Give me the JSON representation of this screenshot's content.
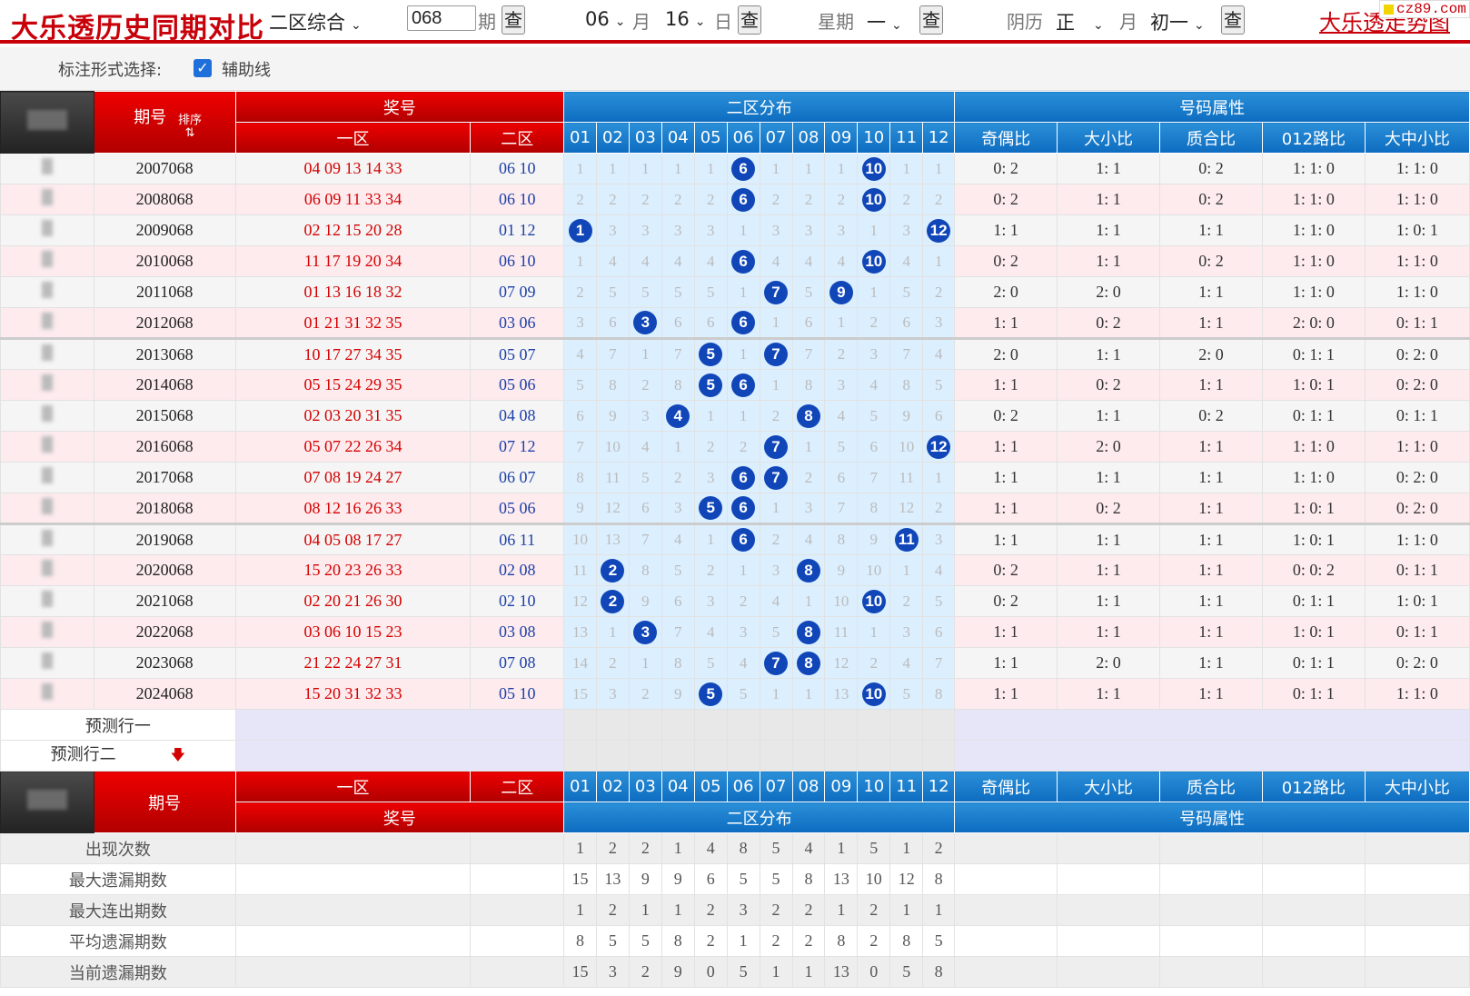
{
  "topbar": {
    "title": "大乐透历史同期对比",
    "zone_select": "二区综合",
    "issue_input": "068",
    "issue_label": "期",
    "btn_query": "查",
    "month_value": "06",
    "month_label": "月",
    "day_value": "16",
    "day_label": "日",
    "weekday_label": "星期",
    "weekday_value": "一",
    "lunar_label": "阴历",
    "lunar_month": "正",
    "lunar_month_label": "月",
    "lunar_day": "初一",
    "right_link": "大乐透走势图",
    "logo_text": "cz89.com"
  },
  "options": {
    "label": "标注形式选择:",
    "checkbox_label": "辅助线",
    "checkbox_checked": true,
    "checkbox_mark": "✓"
  },
  "header": {
    "issue": "期号",
    "sort": "排序",
    "prize": "奖号",
    "zone1": "一区",
    "zone2": "二区",
    "zone2_dist": "二区分布",
    "attrs": "号码属性",
    "numbers": [
      "01",
      "02",
      "03",
      "04",
      "05",
      "06",
      "07",
      "08",
      "09",
      "10",
      "11",
      "12"
    ],
    "attr_cols": [
      "奇偶比",
      "大小比",
      "质合比",
      "012路比",
      "大中小比"
    ]
  },
  "rows": [
    {
      "issue": "2007068",
      "front": "04 09 13 14 33",
      "back": "06 10",
      "dist": [
        "1",
        "1",
        "1",
        "1",
        "1",
        "6",
        "1",
        "1",
        "1",
        "10",
        "1",
        "1"
      ],
      "hits": [
        6,
        10
      ],
      "attrs": [
        "0: 2",
        "1: 1",
        "0: 2",
        "1: 1: 0",
        "1: 1: 0"
      ]
    },
    {
      "issue": "2008068",
      "front": "06 09 11 33 34",
      "back": "06 10",
      "dist": [
        "2",
        "2",
        "2",
        "2",
        "2",
        "6",
        "2",
        "2",
        "2",
        "10",
        "2",
        "2"
      ],
      "hits": [
        6,
        10
      ],
      "attrs": [
        "0: 2",
        "1: 1",
        "0: 2",
        "1: 1: 0",
        "1: 1: 0"
      ]
    },
    {
      "issue": "2009068",
      "front": "02 12 15 20 28",
      "back": "01 12",
      "dist": [
        "1",
        "3",
        "3",
        "3",
        "3",
        "1",
        "3",
        "3",
        "3",
        "1",
        "3",
        "12"
      ],
      "hits": [
        1,
        12
      ],
      "attrs": [
        "1: 1",
        "1: 1",
        "1: 1",
        "1: 1: 0",
        "1: 0: 1"
      ]
    },
    {
      "issue": "2010068",
      "front": "11 17 19 20 34",
      "back": "06 10",
      "dist": [
        "1",
        "4",
        "4",
        "4",
        "4",
        "6",
        "4",
        "4",
        "4",
        "10",
        "4",
        "1"
      ],
      "hits": [
        6,
        10
      ],
      "attrs": [
        "0: 2",
        "1: 1",
        "0: 2",
        "1: 1: 0",
        "1: 1: 0"
      ]
    },
    {
      "issue": "2011068",
      "front": "01 13 16 18 32",
      "back": "07 09",
      "dist": [
        "2",
        "5",
        "5",
        "5",
        "5",
        "1",
        "7",
        "5",
        "9",
        "1",
        "5",
        "2"
      ],
      "hits": [
        7,
        9
      ],
      "attrs": [
        "2: 0",
        "2: 0",
        "1: 1",
        "1: 1: 0",
        "1: 1: 0"
      ]
    },
    {
      "issue": "2012068",
      "front": "01 21 31 32 35",
      "back": "03 06",
      "dist": [
        "3",
        "6",
        "3",
        "6",
        "6",
        "6",
        "1",
        "6",
        "1",
        "2",
        "6",
        "3"
      ],
      "hits": [
        3,
        6
      ],
      "attrs": [
        "1: 1",
        "0: 2",
        "1: 1",
        "2: 0: 0",
        "0: 1: 1"
      ]
    },
    {
      "issue": "2013068",
      "front": "10 17 27 34 35",
      "back": "05 07",
      "dist": [
        "4",
        "7",
        "1",
        "7",
        "5",
        "1",
        "7",
        "7",
        "2",
        "3",
        "7",
        "4"
      ],
      "hits": [
        5,
        7
      ],
      "attrs": [
        "2: 0",
        "1: 1",
        "2: 0",
        "0: 1: 1",
        "0: 2: 0"
      ]
    },
    {
      "issue": "2014068",
      "front": "05 15 24 29 35",
      "back": "05 06",
      "dist": [
        "5",
        "8",
        "2",
        "8",
        "5",
        "6",
        "1",
        "8",
        "3",
        "4",
        "8",
        "5"
      ],
      "hits": [
        5,
        6
      ],
      "attrs": [
        "1: 1",
        "0: 2",
        "1: 1",
        "1: 0: 1",
        "0: 2: 0"
      ]
    },
    {
      "issue": "2015068",
      "front": "02 03 20 31 35",
      "back": "04 08",
      "dist": [
        "6",
        "9",
        "3",
        "4",
        "1",
        "1",
        "2",
        "8",
        "4",
        "5",
        "9",
        "6"
      ],
      "hits": [
        4,
        8
      ],
      "attrs": [
        "0: 2",
        "1: 1",
        "0: 2",
        "0: 1: 1",
        "0: 1: 1"
      ]
    },
    {
      "issue": "2016068",
      "front": "05 07 22 26 34",
      "back": "07 12",
      "dist": [
        "7",
        "10",
        "4",
        "1",
        "2",
        "2",
        "7",
        "1",
        "5",
        "6",
        "10",
        "12"
      ],
      "hits": [
        7,
        12
      ],
      "attrs": [
        "1: 1",
        "2: 0",
        "1: 1",
        "1: 1: 0",
        "1: 1: 0"
      ]
    },
    {
      "issue": "2017068",
      "front": "07 08 19 24 27",
      "back": "06 07",
      "dist": [
        "8",
        "11",
        "5",
        "2",
        "3",
        "6",
        "7",
        "2",
        "6",
        "7",
        "11",
        "1"
      ],
      "hits": [
        6,
        7
      ],
      "attrs": [
        "1: 1",
        "1: 1",
        "1: 1",
        "1: 1: 0",
        "0: 2: 0"
      ]
    },
    {
      "issue": "2018068",
      "front": "08 12 16 26 33",
      "back": "05 06",
      "dist": [
        "9",
        "12",
        "6",
        "3",
        "5",
        "6",
        "1",
        "3",
        "7",
        "8",
        "12",
        "2"
      ],
      "hits": [
        5,
        6
      ],
      "attrs": [
        "1: 1",
        "0: 2",
        "1: 1",
        "1: 0: 1",
        "0: 2: 0"
      ]
    },
    {
      "issue": "2019068",
      "front": "04 05 08 17 27",
      "back": "06 11",
      "dist": [
        "10",
        "13",
        "7",
        "4",
        "1",
        "6",
        "2",
        "4",
        "8",
        "9",
        "11",
        "3"
      ],
      "hits": [
        6,
        11
      ],
      "attrs": [
        "1: 1",
        "1: 1",
        "1: 1",
        "1: 0: 1",
        "1: 1: 0"
      ]
    },
    {
      "issue": "2020068",
      "front": "15 20 23 26 33",
      "back": "02 08",
      "dist": [
        "11",
        "2",
        "8",
        "5",
        "2",
        "1",
        "3",
        "8",
        "9",
        "10",
        "1",
        "4"
      ],
      "hits": [
        2,
        8
      ],
      "attrs": [
        "0: 2",
        "1: 1",
        "1: 1",
        "0: 0: 2",
        "0: 1: 1"
      ]
    },
    {
      "issue": "2021068",
      "front": "02 20 21 26 30",
      "back": "02 10",
      "dist": [
        "12",
        "2",
        "9",
        "6",
        "3",
        "2",
        "4",
        "1",
        "10",
        "10",
        "2",
        "5"
      ],
      "hits": [
        2,
        10
      ],
      "attrs": [
        "0: 2",
        "1: 1",
        "1: 1",
        "0: 1: 1",
        "1: 0: 1"
      ]
    },
    {
      "issue": "2022068",
      "front": "03 06 10 15 23",
      "back": "03 08",
      "dist": [
        "13",
        "1",
        "3",
        "7",
        "4",
        "3",
        "5",
        "8",
        "11",
        "1",
        "3",
        "6"
      ],
      "hits": [
        3,
        8
      ],
      "attrs": [
        "1: 1",
        "1: 1",
        "1: 1",
        "1: 0: 1",
        "0: 1: 1"
      ]
    },
    {
      "issue": "2023068",
      "front": "21 22 24 27 31",
      "back": "07 08",
      "dist": [
        "14",
        "2",
        "1",
        "8",
        "5",
        "4",
        "7",
        "8",
        "12",
        "2",
        "4",
        "7"
      ],
      "hits": [
        7,
        8
      ],
      "attrs": [
        "1: 1",
        "2: 0",
        "1: 1",
        "0: 1: 1",
        "0: 2: 0"
      ]
    },
    {
      "issue": "2024068",
      "front": "15 20 31 32 33",
      "back": "05 10",
      "dist": [
        "15",
        "3",
        "2",
        "9",
        "5",
        "5",
        "1",
        "1",
        "13",
        "10",
        "5",
        "8"
      ],
      "hits": [
        5,
        10
      ],
      "attrs": [
        "1: 1",
        "1: 1",
        "1: 1",
        "0: 1: 1",
        "1: 1: 0"
      ]
    }
  ],
  "predict": [
    "预测行一",
    "预测行二"
  ],
  "predict_arrow": "🡇",
  "stats": [
    {
      "label": "出现次数",
      "values": [
        "1",
        "2",
        "2",
        "1",
        "4",
        "8",
        "5",
        "4",
        "1",
        "5",
        "1",
        "2"
      ]
    },
    {
      "label": "最大遗漏期数",
      "values": [
        "15",
        "13",
        "9",
        "9",
        "6",
        "5",
        "5",
        "8",
        "13",
        "10",
        "12",
        "8"
      ]
    },
    {
      "label": "最大连出期数",
      "values": [
        "1",
        "2",
        "1",
        "1",
        "2",
        "3",
        "2",
        "2",
        "1",
        "2",
        "1",
        "1"
      ]
    },
    {
      "label": "平均遗漏期数",
      "values": [
        "8",
        "5",
        "5",
        "8",
        "2",
        "1",
        "2",
        "2",
        "8",
        "2",
        "8",
        "5"
      ]
    },
    {
      "label": "当前遗漏期数",
      "values": [
        "15",
        "3",
        "2",
        "9",
        "0",
        "5",
        "1",
        "1",
        "13",
        "0",
        "5",
        "8"
      ]
    }
  ]
}
